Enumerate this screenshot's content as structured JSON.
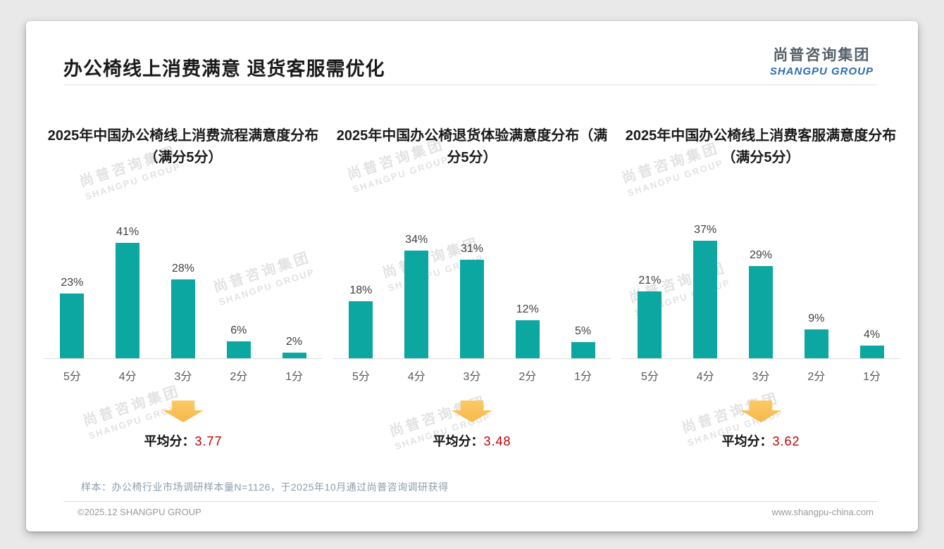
{
  "page_title": "办公椅线上消费满意 退货客服需优化",
  "logo": {
    "cn": "尚普咨询集团",
    "en": "SHANGPU GROUP"
  },
  "watermark": {
    "cn": "尚普咨询集团",
    "en": "SHANGPU GROUP"
  },
  "colors": {
    "bar": "#0ba7a0",
    "avg_value_red": "#c00000",
    "arrow_top": "#fbca66",
    "arrow_bottom": "#f6b84c",
    "logo_en_blue": "#2d6cb3"
  },
  "chart_data": [
    {
      "type": "bar",
      "title": "2025年中国办公椅线上消费流程满意度分布（满分5分）",
      "categories": [
        "5分",
        "4分",
        "3分",
        "2分",
        "1分"
      ],
      "values": [
        23,
        41,
        28,
        6,
        2
      ],
      "unit": "%",
      "ylim": [
        0,
        45
      ],
      "grid": false,
      "avg_label": "平均分：",
      "avg_value": "3.77"
    },
    {
      "type": "bar",
      "title": "2025年中国办公椅退货体验满意度分布（满分5分）",
      "categories": [
        "5分",
        "4分",
        "3分",
        "2分",
        "1分"
      ],
      "values": [
        18,
        34,
        31,
        12,
        5
      ],
      "unit": "%",
      "ylim": [
        0,
        40
      ],
      "grid": false,
      "avg_label": "平均分：",
      "avg_value": "3.48"
    },
    {
      "type": "bar",
      "title": "2025年中国办公椅线上消费客服满意度分布（满分5分）",
      "categories": [
        "5分",
        "4分",
        "3分",
        "2分",
        "1分"
      ],
      "values": [
        21,
        37,
        29,
        9,
        4
      ],
      "unit": "%",
      "ylim": [
        0,
        40
      ],
      "grid": false,
      "avg_label": "平均分：",
      "avg_value": "3.62"
    }
  ],
  "footer": {
    "note": "样本：办公椅行业市场调研样本量N=1126，于2025年10月通过尚普咨询调研获得",
    "copyright": "©2025.12 SHANGPU GROUP",
    "website": "www.shangpu-china.com"
  }
}
